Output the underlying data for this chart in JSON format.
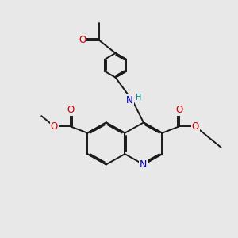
{
  "bg_color": "#e8e8e8",
  "bond_color": "#1a1a1a",
  "bond_width": 1.4,
  "dbo": 0.055,
  "atom_colors": {
    "N": "#0000cc",
    "O": "#cc0000",
    "H": "#008b8b",
    "C": "#1a1a1a"
  },
  "font_size": 8.0
}
